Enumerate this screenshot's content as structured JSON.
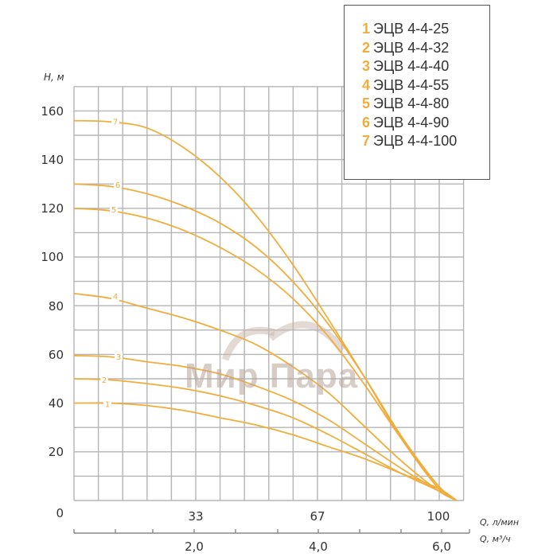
{
  "chart_data": {
    "type": "line",
    "title": "",
    "xlabel": "Q, л/мин",
    "xlabel_secondary": "Q, м³/ч",
    "ylabel": "H, м",
    "ylim": [
      0,
      170
    ],
    "xlim_lpm": [
      0,
      105
    ],
    "grid": true,
    "legend_position": "top-right",
    "y_ticks": [
      "0",
      "20",
      "40",
      "60",
      "80",
      "100",
      "120",
      "140",
      "160"
    ],
    "x_ticks_lpm": [
      "33",
      "67",
      "100"
    ],
    "x_ticks_m3h": [
      "2,0",
      "4,0",
      "6,0"
    ],
    "x_lpm": [
      0,
      10,
      20,
      30,
      40,
      50,
      60,
      70,
      80,
      90,
      100,
      105
    ],
    "series": [
      {
        "id": "1",
        "name": "ЭЦВ 4-4-25",
        "values": [
          40,
          40,
          39,
          37,
          34,
          31,
          27,
          22,
          17,
          11,
          5,
          0
        ]
      },
      {
        "id": "2",
        "name": "ЭЦВ 4-4-32",
        "values": [
          50,
          49.5,
          48,
          46,
          43,
          39,
          34,
          27,
          19,
          11,
          4,
          0
        ]
      },
      {
        "id": "3",
        "name": "ЭЦВ 4-4-40",
        "values": [
          59.5,
          59,
          57,
          55,
          52,
          47,
          41,
          33,
          23,
          13,
          4,
          0
        ]
      },
      {
        "id": "4",
        "name": "ЭЦВ 4-4-55",
        "values": [
          85,
          83,
          79,
          75,
          70,
          64,
          55,
          44,
          30,
          16,
          4,
          0
        ]
      },
      {
        "id": "5",
        "name": "ЭЦВ 4-4-80",
        "values": [
          120,
          119,
          116,
          111,
          104,
          95,
          83,
          67,
          47,
          25,
          6,
          0
        ]
      },
      {
        "id": "6",
        "name": "ЭЦВ 4-4-90",
        "values": [
          130,
          129,
          126,
          121,
          114,
          104,
          90,
          72,
          50,
          26,
          6,
          0
        ]
      },
      {
        "id": "7",
        "name": "ЭЦВ 4-4-100",
        "values": [
          156,
          155.5,
          153,
          145,
          133,
          117,
          97,
          74,
          50,
          25,
          5,
          0
        ]
      }
    ],
    "annotations": [
      "Мир Пара"
    ]
  },
  "axis": {
    "y_title": "H, м",
    "x_title_lpm": "Q, л/мин",
    "x_title_m3h": "Q, м³/ч"
  },
  "legend": {
    "items": [
      {
        "num": "1",
        "label": "ЭЦВ 4-4-25"
      },
      {
        "num": "2",
        "label": "ЭЦВ 4-4-32"
      },
      {
        "num": "3",
        "label": "ЭЦВ 4-4-40"
      },
      {
        "num": "4",
        "label": "ЭЦВ 4-4-55"
      },
      {
        "num": "5",
        "label": "ЭЦВ 4-4-80"
      },
      {
        "num": "6",
        "label": "ЭЦВ 4-4-90"
      },
      {
        "num": "7",
        "label": "ЭЦВ 4-4-100"
      }
    ]
  },
  "watermark": "Мир Пара",
  "colors": {
    "curve": "#f0ad3c",
    "grid": "#b5b5b5",
    "text": "#333333"
  }
}
